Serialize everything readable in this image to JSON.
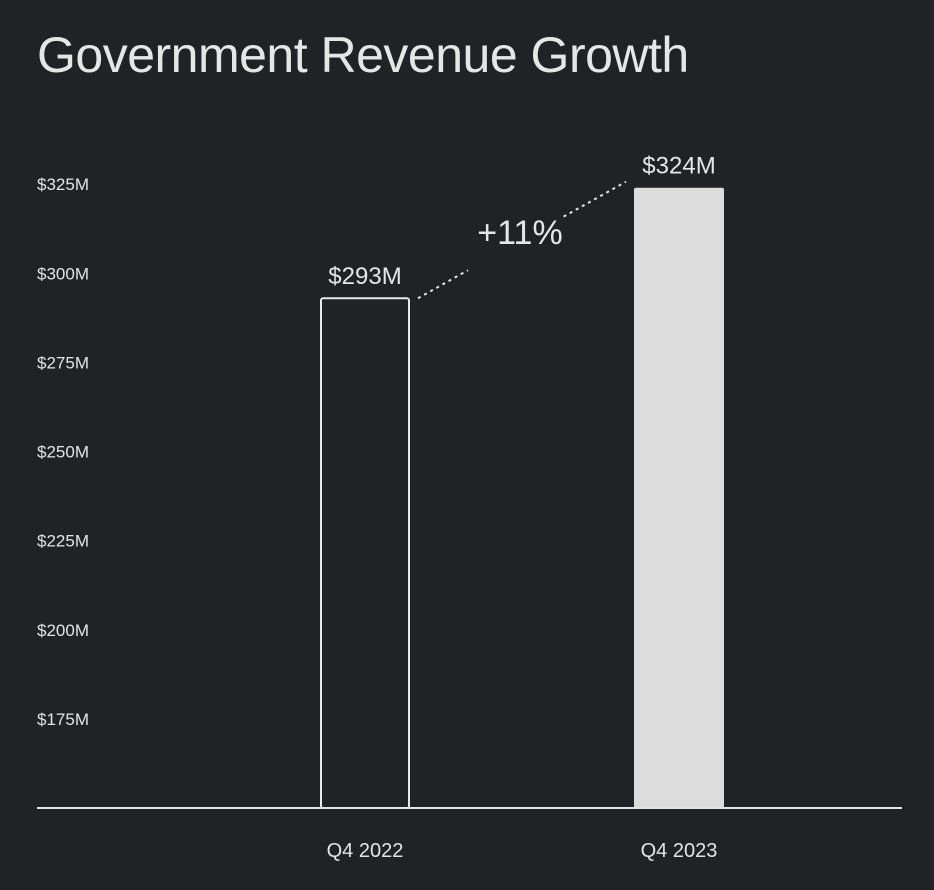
{
  "chart_data": {
    "type": "bar",
    "title": "Government Revenue Growth",
    "xlabel": "",
    "ylabel": "",
    "categories": [
      "Q4 2022",
      "Q4 2023"
    ],
    "values": [
      293,
      324
    ],
    "value_labels": [
      "$293M",
      "$324M"
    ],
    "bar_styles": [
      "outline",
      "filled"
    ],
    "y_ticks": [
      175,
      200,
      225,
      250,
      275,
      300,
      325
    ],
    "y_tick_labels": [
      "$175M",
      "$200M",
      "$225M",
      "$250M",
      "$275M",
      "$300M",
      "$325M"
    ],
    "ylim": [
      150,
      325
    ],
    "grid": false,
    "annotation": "+11%",
    "colors": {
      "background": "#212226",
      "bar_fill": "#dcdcdc",
      "bar_outline": "#e8e8e8",
      "text": "#e4e4e4",
      "axis": "#e4e4e4"
    }
  }
}
